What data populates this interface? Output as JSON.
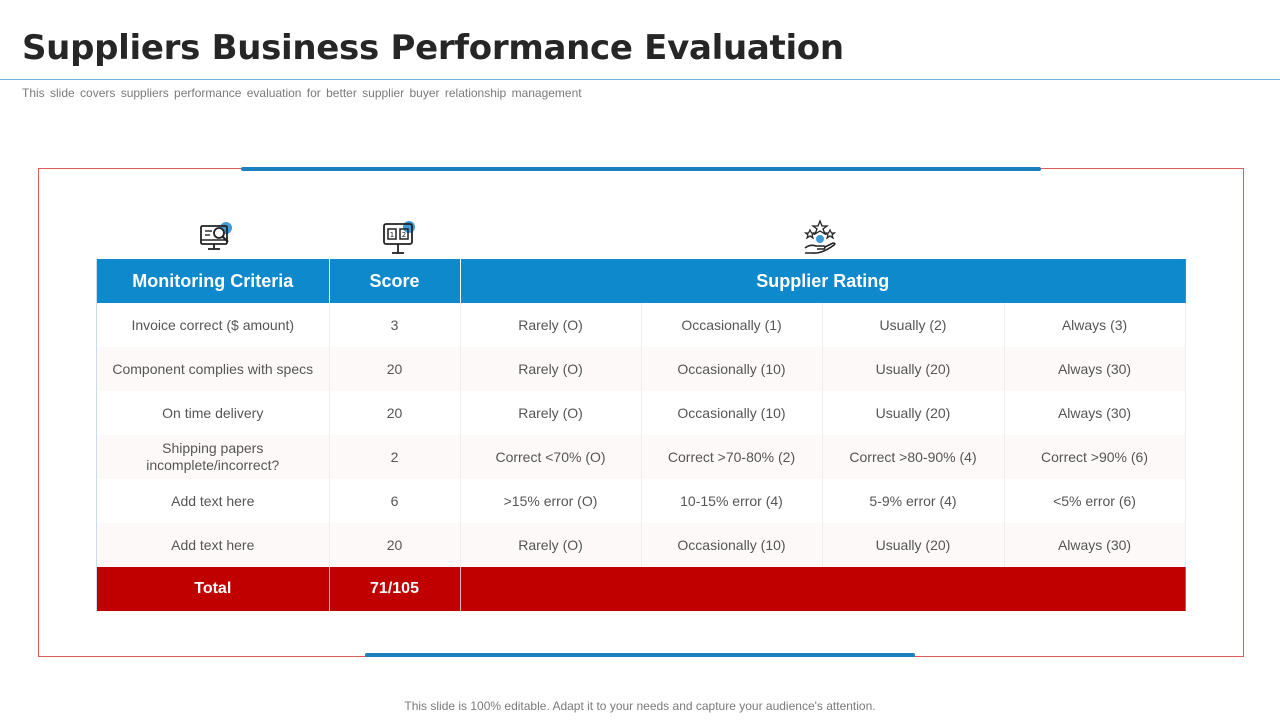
{
  "slide": {
    "title": "Suppliers Business Performance Evaluation",
    "subtitle": "This slide covers suppliers performance  evaluation  for better supplier buyer relationship management",
    "footer": "This slide is 100% editable. Adapt it to your needs and capture your audience's attention."
  },
  "icons": {
    "criteria": "monitor-magnifier-icon",
    "score": "scoreboard-icon",
    "rating": "hand-stars-icon"
  },
  "colors": {
    "header_blue": "#0e89cc",
    "total_red": "#c00000",
    "frame_red": "#e05a5a",
    "accent_blue": "#1b7fc0"
  },
  "table": {
    "headers": {
      "criteria": "Monitoring Criteria",
      "score": "Score",
      "rating": "Supplier Rating"
    },
    "rows": [
      {
        "criteria": "Invoice correct ($ amount)",
        "score": "3",
        "ratings": [
          "Rarely (O)",
          "Occasionally (1)",
          "Usually (2)",
          "Always (3)"
        ]
      },
      {
        "criteria": "Component complies with specs",
        "score": "20",
        "ratings": [
          "Rarely (O)",
          "Occasionally (10)",
          "Usually (20)",
          "Always (30)"
        ]
      },
      {
        "criteria": "On time delivery",
        "score": "20",
        "ratings": [
          "Rarely (O)",
          "Occasionally (10)",
          "Usually (20)",
          "Always (30)"
        ]
      },
      {
        "criteria": "Shipping papers incomplete/incorrect?",
        "score": "2",
        "ratings": [
          "Correct <70% (O)",
          "Correct >70-80% (2)",
          "Correct >80-90% (4)",
          "Correct >90% (6)"
        ]
      },
      {
        "criteria": "Add text here",
        "score": "6",
        "ratings": [
          ">15% error (O)",
          "10-15% error (4)",
          "5-9% error (4)",
          "<5% error (6)"
        ]
      },
      {
        "criteria": "Add text here",
        "score": "20",
        "ratings": [
          "Rarely (O)",
          "Occasionally (10)",
          "Usually (20)",
          "Always (30)"
        ]
      }
    ],
    "total": {
      "label": "Total",
      "score": "71/105"
    }
  }
}
